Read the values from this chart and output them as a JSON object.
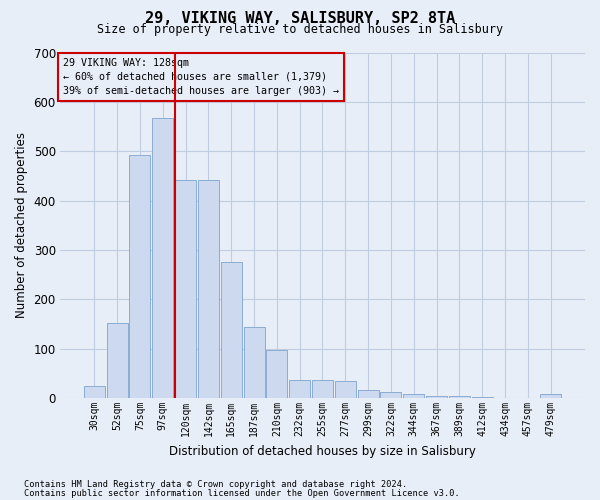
{
  "title": "29, VIKING WAY, SALISBURY, SP2 8TA",
  "subtitle": "Size of property relative to detached houses in Salisbury",
  "xlabel": "Distribution of detached houses by size in Salisbury",
  "ylabel": "Number of detached properties",
  "footnote1": "Contains HM Land Registry data © Crown copyright and database right 2024.",
  "footnote2": "Contains public sector information licensed under the Open Government Licence v3.0.",
  "categories": [
    "30sqm",
    "52sqm",
    "75sqm",
    "97sqm",
    "120sqm",
    "142sqm",
    "165sqm",
    "187sqm",
    "210sqm",
    "232sqm",
    "255sqm",
    "277sqm",
    "299sqm",
    "322sqm",
    "344sqm",
    "367sqm",
    "389sqm",
    "412sqm",
    "434sqm",
    "457sqm",
    "479sqm"
  ],
  "values": [
    25,
    153,
    492,
    568,
    442,
    442,
    275,
    145,
    97,
    37,
    37,
    35,
    16,
    12,
    8,
    5,
    5,
    2,
    1,
    1,
    8
  ],
  "bar_color": "#ccd9ee",
  "bar_edge_color": "#8aadd4",
  "grid_color": "#c0cce0",
  "bg_color": "#e8eef8",
  "annotation_box_color": "#cc0000",
  "annotation_title": "29 VIKING WAY: 128sqm",
  "annotation_line1": "← 60% of detached houses are smaller (1,379)",
  "annotation_line2": "39% of semi-detached houses are larger (903) →",
  "vline_color": "#cc0000",
  "vline_x": 4,
  "ylim": [
    0,
    700
  ],
  "yticks": [
    0,
    100,
    200,
    300,
    400,
    500,
    600,
    700
  ]
}
